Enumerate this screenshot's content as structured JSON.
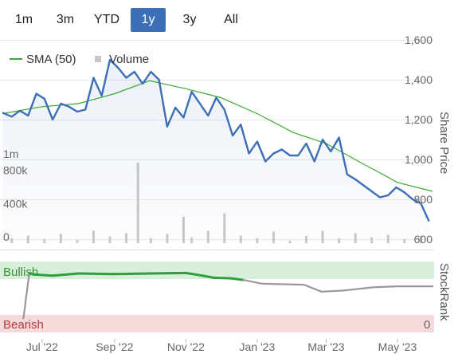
{
  "range_selector": {
    "buttons": [
      "1m",
      "3m",
      "YTD",
      "1y",
      "3y",
      "All"
    ],
    "selected": "1y"
  },
  "legend": {
    "sma_label": "SMA (50)",
    "volume_label": "Volume"
  },
  "colors": {
    "price": "#3c6fb5",
    "sma": "#3aaa35",
    "volume": "#c8c8c8",
    "bullish_zone": "#d8efdc",
    "bearish_zone": "#f6d9db",
    "stockrank_bull": "#2e9e3e",
    "stockrank_neutral": "#999999"
  },
  "axis_titles": {
    "price": "Share Price",
    "rank": "StockRank"
  },
  "zones": {
    "bullish": "Bullish",
    "bearish": "Bearish",
    "bottom_value": "0"
  },
  "chart_data": [
    {
      "type": "line",
      "title": "",
      "ylabel": "Share Price",
      "ylim": [
        600,
        1600
      ],
      "yticks": [
        "1,600",
        "1,400",
        "1,200",
        "1,000",
        "800",
        "600"
      ],
      "x_ticks": [
        "Jul '22",
        "Sep '22",
        "Nov '22",
        "Jan '23",
        "Mar '23",
        "May '23"
      ],
      "x_tick_dates": [
        "2022-07-01",
        "2022-09-01",
        "2022-11-01",
        "2023-01-01",
        "2023-03-01",
        "2023-05-01"
      ],
      "x_range": [
        "2022-05-28",
        "2023-05-31"
      ],
      "series": [
        {
          "name": "Share Price",
          "x": [
            "2022-05-28",
            "2022-06-05",
            "2022-06-12",
            "2022-06-19",
            "2022-06-26",
            "2022-07-03",
            "2022-07-10",
            "2022-07-17",
            "2022-07-24",
            "2022-07-31",
            "2022-08-07",
            "2022-08-14",
            "2022-08-21",
            "2022-08-28",
            "2022-09-04",
            "2022-09-11",
            "2022-09-18",
            "2022-09-25",
            "2022-10-02",
            "2022-10-09",
            "2022-10-16",
            "2022-10-23",
            "2022-10-30",
            "2022-11-06",
            "2022-11-13",
            "2022-11-20",
            "2022-11-27",
            "2022-12-04",
            "2022-12-11",
            "2022-12-18",
            "2022-12-25",
            "2023-01-01",
            "2023-01-08",
            "2023-01-15",
            "2023-01-22",
            "2023-01-29",
            "2023-02-05",
            "2023-02-12",
            "2023-02-19",
            "2023-02-26",
            "2023-03-05",
            "2023-03-12",
            "2023-03-19",
            "2023-03-26",
            "2023-04-02",
            "2023-04-09",
            "2023-04-16",
            "2023-04-23",
            "2023-04-30",
            "2023-05-07",
            "2023-05-14",
            "2023-05-21",
            "2023-05-28"
          ],
          "values": [
            1235,
            1215,
            1245,
            1220,
            1330,
            1305,
            1200,
            1280,
            1265,
            1240,
            1250,
            1410,
            1320,
            1500,
            1460,
            1410,
            1440,
            1380,
            1440,
            1400,
            1165,
            1260,
            1210,
            1340,
            1280,
            1220,
            1310,
            1250,
            1120,
            1175,
            1030,
            1090,
            990,
            1030,
            1050,
            1020,
            1020,
            1080,
            990,
            1100,
            1040,
            1110,
            925,
            900,
            870,
            840,
            810,
            820,
            860,
            835,
            800,
            780,
            690
          ]
        },
        {
          "name": "SMA (50)",
          "x": [
            "2022-05-28",
            "2022-07-01",
            "2022-08-01",
            "2022-09-01",
            "2022-10-01",
            "2022-11-01",
            "2022-12-01",
            "2023-01-01",
            "2023-02-01",
            "2023-03-01",
            "2023-04-01",
            "2023-05-01",
            "2023-05-31"
          ],
          "values": [
            1230,
            1265,
            1280,
            1330,
            1395,
            1355,
            1310,
            1230,
            1135,
            1080,
            980,
            885,
            840
          ]
        }
      ]
    },
    {
      "type": "bar",
      "title": "",
      "ylabel": "Volume",
      "ylim": [
        0,
        1200000
      ],
      "yticks": [
        "1m",
        "800k",
        "400k",
        "0"
      ],
      "series": [
        {
          "name": "Volume",
          "x": [
            "2022-06-05",
            "2022-06-19",
            "2022-07-03",
            "2022-07-17",
            "2022-07-31",
            "2022-08-14",
            "2022-08-28",
            "2022-09-11",
            "2022-09-21",
            "2022-10-02",
            "2022-10-16",
            "2022-10-30",
            "2022-11-06",
            "2022-11-20",
            "2022-12-04",
            "2022-12-18",
            "2023-01-01",
            "2023-01-15",
            "2023-01-29",
            "2023-02-12",
            "2023-02-26",
            "2023-03-12",
            "2023-03-26",
            "2023-04-09",
            "2023-04-23",
            "2023-05-07",
            "2023-05-21"
          ],
          "values": [
            60000,
            90000,
            50000,
            110000,
            40000,
            150000,
            80000,
            120000,
            970000,
            60000,
            110000,
            320000,
            70000,
            150000,
            360000,
            90000,
            60000,
            140000,
            30000,
            90000,
            150000,
            60000,
            120000,
            70000,
            100000,
            50000,
            90000
          ]
        }
      ]
    },
    {
      "type": "line",
      "title": "",
      "ylabel": "StockRank",
      "ylim": [
        0,
        100
      ],
      "series": [
        {
          "name": "StockRank",
          "x": [
            "2022-06-15",
            "2022-06-20",
            "2022-06-25",
            "2022-07-10",
            "2022-08-01",
            "2022-09-01",
            "2022-10-01",
            "2022-11-01",
            "2022-11-15",
            "2022-11-25",
            "2022-12-10",
            "2022-12-20",
            "2023-01-05",
            "2023-01-20",
            "2023-02-10",
            "2023-02-25",
            "2023-03-15",
            "2023-04-10",
            "2023-05-01",
            "2023-05-31"
          ],
          "values": [
            10,
            95,
            92,
            90,
            94,
            93,
            94,
            95,
            90,
            86,
            85,
            82,
            75,
            74,
            73,
            60,
            62,
            68,
            70,
            70
          ]
        }
      ]
    }
  ]
}
